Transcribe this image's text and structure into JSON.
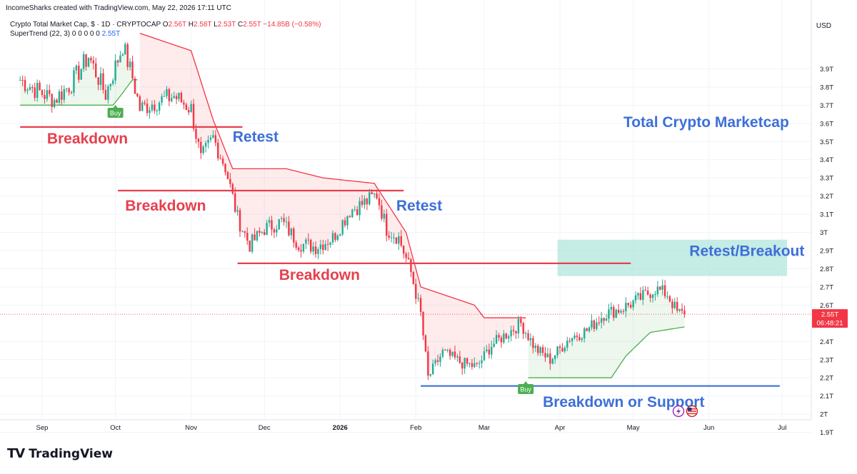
{
  "credit": "IncomeSharks created with TradingView.com, May 22, 2026 17:11 UTC",
  "symbol": {
    "name": "Crypto Total Market Cap, $ · 1D · CRYPTOCAP",
    "o_label": "O",
    "o": "2.56T",
    "h_label": "H",
    "h": "2.58T",
    "l_label": "L",
    "l": "2.53T",
    "c_label": "C",
    "c": "2.55T",
    "change": "−14.85B (−0.58%)"
  },
  "indicator": {
    "name": "SuperTrend (22, 3)",
    "values": "0 0 0 0 0",
    "value": "2.55T"
  },
  "currency": "USD",
  "footer": {
    "logo_mark": "TV",
    "logo_text": "TradingView"
  },
  "colors": {
    "up": "#22ab94",
    "down": "#f23645",
    "supertrend_up": "#4caf50",
    "supertrend_down": "#f23645",
    "annotation_red": "#e5404e",
    "annotation_blue": "#3d6fd9",
    "zone": "#b2e6dc"
  },
  "chart_data": {
    "type": "candlestick",
    "title": "Total Crypto Marketcap",
    "xlabel": "",
    "ylabel": "",
    "y_range": [
      1.85,
      4.05
    ],
    "y_ticks": [
      "3.9T",
      "3.8T",
      "3.7T",
      "3.6T",
      "3.5T",
      "3.4T",
      "3.3T",
      "3.2T",
      "3.1T",
      "3T",
      "2.9T",
      "2.8T",
      "2.7T",
      "2.6T",
      "2.4T",
      "2.3T",
      "2.2T",
      "2.1T",
      "2T",
      "1.9T"
    ],
    "y_tick_values": [
      3.9,
      3.8,
      3.7,
      3.6,
      3.5,
      3.4,
      3.3,
      3.2,
      3.1,
      3.0,
      2.9,
      2.8,
      2.7,
      2.6,
      2.4,
      2.3,
      2.2,
      2.1,
      2.0,
      1.9
    ],
    "x_ticks": [
      "Sep",
      "Oct",
      "Nov",
      "Dec",
      "2026",
      "Feb",
      "Mar",
      "Apr",
      "May",
      "Jun",
      "Jul"
    ],
    "x_tick_bold": [
      "2026"
    ],
    "last_price_label": "2.55T",
    "countdown": "06:48:21",
    "last_price": 2.55,
    "price_path": [
      {
        "x": "Aug 23",
        "y": 3.84
      },
      {
        "x": "Aug 30",
        "y": 3.78
      },
      {
        "x": "Sep 6",
        "y": 3.73
      },
      {
        "x": "Sep 13",
        "y": 3.82
      },
      {
        "x": "Sep 20",
        "y": 3.97
      },
      {
        "x": "Sep 27",
        "y": 3.76
      },
      {
        "x": "Oct 4",
        "y": 4.03
      },
      {
        "x": "Oct 8",
        "y": 3.85
      },
      {
        "x": "Oct 11",
        "y": 3.68
      },
      {
        "x": "Oct 18",
        "y": 3.72
      },
      {
        "x": "Oct 25",
        "y": 3.75
      },
      {
        "x": "Nov 1",
        "y": 3.68
      },
      {
        "x": "Nov 5",
        "y": 3.4
      },
      {
        "x": "Nov 10",
        "y": 3.52
      },
      {
        "x": "Nov 15",
        "y": 3.36
      },
      {
        "x": "Nov 20",
        "y": 3.08
      },
      {
        "x": "Nov 25",
        "y": 2.93
      },
      {
        "x": "Dec 1",
        "y": 3.02
      },
      {
        "x": "Dec 8",
        "y": 3.06
      },
      {
        "x": "Dec 15",
        "y": 2.94
      },
      {
        "x": "Dec 22",
        "y": 2.92
      },
      {
        "x": "Dec 29",
        "y": 2.97
      },
      {
        "x": "Jan 5",
        "y": 3.12
      },
      {
        "x": "Jan 12",
        "y": 3.17
      },
      {
        "x": "Jan 16",
        "y": 3.21
      },
      {
        "x": "Jan 20",
        "y": 3.02
      },
      {
        "x": "Jan 25",
        "y": 2.97
      },
      {
        "x": "Jan 30",
        "y": 2.78
      },
      {
        "x": "Feb 3",
        "y": 2.55
      },
      {
        "x": "Feb 6",
        "y": 2.2
      },
      {
        "x": "Feb 12",
        "y": 2.34
      },
      {
        "x": "Feb 20",
        "y": 2.28
      },
      {
        "x": "Feb 26",
        "y": 2.26
      },
      {
        "x": "Mar 4",
        "y": 2.38
      },
      {
        "x": "Mar 10",
        "y": 2.44
      },
      {
        "x": "Mar 16",
        "y": 2.5
      },
      {
        "x": "Mar 22",
        "y": 2.36
      },
      {
        "x": "Mar 28",
        "y": 2.3
      },
      {
        "x": "Apr 5",
        "y": 2.42
      },
      {
        "x": "Apr 12",
        "y": 2.46
      },
      {
        "x": "Apr 19",
        "y": 2.55
      },
      {
        "x": "Apr 26",
        "y": 2.58
      },
      {
        "x": "May 3",
        "y": 2.63
      },
      {
        "x": "May 10",
        "y": 2.69
      },
      {
        "x": "May 15",
        "y": 2.66
      },
      {
        "x": "May 19",
        "y": 2.56
      },
      {
        "x": "May 22",
        "y": 2.55
      }
    ],
    "supertrend": [
      {
        "x": "Aug 23",
        "y": 3.7,
        "trend": "up"
      },
      {
        "x": "Sep 30",
        "y": 3.7,
        "trend": "up"
      },
      {
        "x": "Oct 3",
        "y": 3.75,
        "trend": "up"
      },
      {
        "x": "Oct 8",
        "y": 3.84,
        "trend": "up"
      },
      {
        "x": "Oct 10",
        "y": 4.1,
        "trend": "down"
      },
      {
        "x": "Nov 1",
        "y": 4.0,
        "trend": "down"
      },
      {
        "x": "Nov 10",
        "y": 3.62,
        "trend": "down"
      },
      {
        "x": "Nov 18",
        "y": 3.35,
        "trend": "down"
      },
      {
        "x": "Dec 10",
        "y": 3.35,
        "trend": "down"
      },
      {
        "x": "Dec 25",
        "y": 3.3,
        "trend": "down"
      },
      {
        "x": "Jan 15",
        "y": 3.27,
        "trend": "down"
      },
      {
        "x": "Jan 28",
        "y": 3.0,
        "trend": "down"
      },
      {
        "x": "Feb 3",
        "y": 2.7,
        "trend": "down"
      },
      {
        "x": "Feb 25",
        "y": 2.6,
        "trend": "down"
      },
      {
        "x": "Mar 1",
        "y": 2.53,
        "trend": "down"
      },
      {
        "x": "Mar 17",
        "y": 2.53,
        "trend": "down"
      },
      {
        "x": "Mar 18",
        "y": 2.2,
        "trend": "up"
      },
      {
        "x": "Apr 22",
        "y": 2.2,
        "trend": "up"
      },
      {
        "x": "Apr 28",
        "y": 2.32,
        "trend": "up"
      },
      {
        "x": "May 8",
        "y": 2.45,
        "trend": "up"
      },
      {
        "x": "May 22",
        "y": 2.48,
        "trend": "up"
      }
    ],
    "horizontal_lines": [
      {
        "y": 3.58,
        "from": "Aug 23",
        "to": "Nov 22",
        "color": "red"
      },
      {
        "y": 3.23,
        "from": "Oct 2",
        "to": "Jan 27",
        "color": "red"
      },
      {
        "y": 2.83,
        "from": "Nov 20",
        "to": "Apr 30",
        "color": "red"
      },
      {
        "y": 2.155,
        "from": "Feb 3",
        "to": "Jun 30",
        "color": "blue"
      }
    ],
    "zone": {
      "from": "Mar 31",
      "to": "Jul 3",
      "y_low": 2.76,
      "y_high": 2.96
    },
    "annotations": [
      {
        "text": "Breakdown",
        "x": "Sep 3",
        "y": 3.49,
        "color": "red"
      },
      {
        "text": "Retest",
        "x": "Nov 18",
        "y": 3.5,
        "color": "blue"
      },
      {
        "text": "Breakdown",
        "x": "Oct 5",
        "y": 3.12,
        "color": "red"
      },
      {
        "text": "Retest",
        "x": "Jan 24",
        "y": 3.12,
        "color": "blue"
      },
      {
        "text": "Breakdown",
        "x": "Dec 7",
        "y": 2.74,
        "color": "red"
      },
      {
        "text": "Total Crypto Marketcap",
        "x": "Apr 27",
        "y": 3.58,
        "color": "blue"
      },
      {
        "text": "Retest/Breakout",
        "x": "May 24",
        "y": 2.87,
        "color": "blue"
      },
      {
        "text": "Breakdown or Support",
        "x": "Mar 25",
        "y": 2.04,
        "color": "blue"
      }
    ],
    "signals": [
      {
        "text": "Buy",
        "x": "Oct 1",
        "y": 3.67
      },
      {
        "text": "Buy",
        "x": "Mar 18",
        "y": 2.15
      }
    ]
  }
}
